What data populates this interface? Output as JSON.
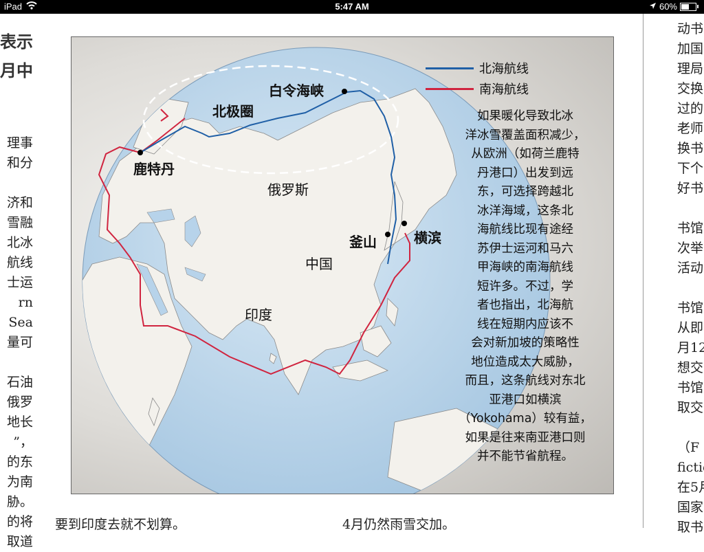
{
  "status_bar": {
    "device": "iPad",
    "time": "5:47 AM",
    "battery": "60%",
    "battery_level": 0.6
  },
  "left_column": {
    "heading_lines": [
      "表示",
      "月中"
    ],
    "lines": [
      "理事",
      "和分",
      "",
      "济和",
      "雪融",
      "北冰",
      "航线",
      "士运",
      "rn Sea",
      "量可",
      "",
      "石油",
      "俄罗",
      "地长",
      "”，",
      "的东",
      "为南",
      "胁。",
      "的将",
      "取道"
    ]
  },
  "right_column": {
    "lines": [
      "动书",
      "加国",
      "理局",
      "交换",
      "过的",
      "老师",
      "换书",
      "下个",
      "好书",
      "",
      "书馆",
      "次举",
      "活动",
      "",
      "书馆",
      "从即",
      "月12",
      "想交",
      "书馆",
      "取交",
      "",
      "（F",
      "fictio",
      "在5月",
      "国家",
      "取书"
    ]
  },
  "figure": {
    "legend": [
      {
        "label": "北海航线",
        "color": "#1f5fa6"
      },
      {
        "label": "南海航线",
        "color": "#d0243f"
      }
    ],
    "places": {
      "bering": "白令海峡",
      "arctic": "北极圈",
      "rotterdam": "鹿特丹",
      "russia": "俄罗斯",
      "busan": "釜山",
      "yokohama": "横滨",
      "china": "中国",
      "india": "印度"
    },
    "caption_lines": [
      "如果暖化导致北冰",
      "洋冰雪覆盖面积减少，",
      "从欧洲（如荷兰鹿特",
      "丹港口）出发到远",
      "东，可选择跨越北",
      "冰洋海域，这条北",
      "海航线比现有途经",
      "苏伊士运河和马六",
      "甲海峡的南海航线",
      "短许多。不过，学",
      "者也指出，北海航",
      "线在短期内应该不",
      "会对新加坡的策略性",
      "地位造成太大威胁，",
      "而且，这条航线对东北",
      "亚港口如横滨",
      "（Yokohama）较有益，",
      "如果是往来南亚港口则",
      "并不能节省航程。"
    ],
    "colors": {
      "ocean": "#c4dcef",
      "land": "#f3f1ec",
      "border": "#8a8a8a"
    }
  },
  "bottom": {
    "left_text": "要到印度去就不划算。",
    "right_text": "4月仍然雨雪交加。"
  }
}
